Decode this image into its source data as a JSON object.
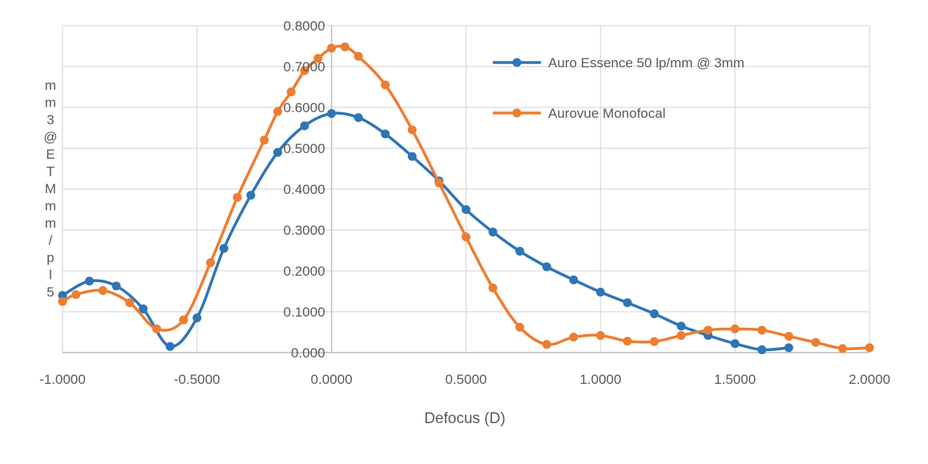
{
  "chart_data": {
    "type": "line",
    "title": "",
    "xlabel": "Defocus (D)",
    "ylabel_chars": [
      "m",
      "m",
      "3",
      "@",
      "E",
      "T",
      "M",
      "m",
      "m",
      "/",
      "p",
      "l",
      "5"
    ],
    "xlim": [
      -1.0,
      2.0
    ],
    "ylim": [
      0.0,
      0.8
    ],
    "x_ticks": [
      -1.0,
      -0.5,
      0.0,
      0.5,
      1.0,
      1.5,
      2.0
    ],
    "x_tick_labels": [
      "-1.0000",
      "-0.5000",
      "0.0000",
      "0.5000",
      "1.0000",
      "1.5000",
      "2.0000"
    ],
    "y_ticks": [
      0.0,
      0.1,
      0.2,
      0.3,
      0.4,
      0.5,
      0.6,
      0.7,
      0.8
    ],
    "y_tick_labels": [
      "0.000",
      "0.1000",
      "0.2000",
      "0.3000",
      "0.4000",
      "0.5000",
      "0.6000",
      "0.7000",
      "0.8000"
    ],
    "grid": true,
    "legend_position": "top-right",
    "series": [
      {
        "name": "Auro Essence 50 lp/mm @ 3mm",
        "color": "#2E75B6",
        "x": [
          -1.0,
          -0.9,
          -0.8,
          -0.7,
          -0.6,
          -0.5,
          -0.4,
          -0.3,
          -0.2,
          -0.1,
          0.0,
          0.1,
          0.2,
          0.3,
          0.4,
          0.5,
          0.6,
          0.7,
          0.8,
          0.9,
          1.0,
          1.1,
          1.2,
          1.3,
          1.4,
          1.5,
          1.6,
          1.7
        ],
        "y": [
          0.14,
          0.175,
          0.163,
          0.107,
          0.015,
          0.085,
          0.255,
          0.385,
          0.49,
          0.555,
          0.585,
          0.575,
          0.535,
          0.48,
          0.42,
          0.35,
          0.295,
          0.248,
          0.21,
          0.178,
          0.148,
          0.122,
          0.095,
          0.065,
          0.042,
          0.022,
          0.007,
          0.012
        ]
      },
      {
        "name": "Aurovue Monofocal",
        "color": "#ED7D31",
        "x": [
          -1.0,
          -0.95,
          -0.85,
          -0.75,
          -0.65,
          -0.55,
          -0.45,
          -0.35,
          -0.25,
          -0.2,
          -0.15,
          -0.1,
          -0.05,
          0.0,
          0.05,
          0.1,
          0.2,
          0.3,
          0.4,
          0.5,
          0.6,
          0.7,
          0.8,
          0.9,
          1.0,
          1.1,
          1.2,
          1.3,
          1.4,
          1.5,
          1.6,
          1.7,
          1.8,
          1.9,
          2.0
        ],
        "y": [
          0.125,
          0.142,
          0.152,
          0.122,
          0.058,
          0.08,
          0.22,
          0.38,
          0.52,
          0.59,
          0.638,
          0.69,
          0.72,
          0.745,
          0.748,
          0.725,
          0.655,
          0.545,
          0.415,
          0.283,
          0.158,
          0.062,
          0.02,
          0.038,
          0.042,
          0.028,
          0.027,
          0.042,
          0.055,
          0.058,
          0.055,
          0.04,
          0.025,
          0.01,
          0.012
        ]
      }
    ]
  }
}
